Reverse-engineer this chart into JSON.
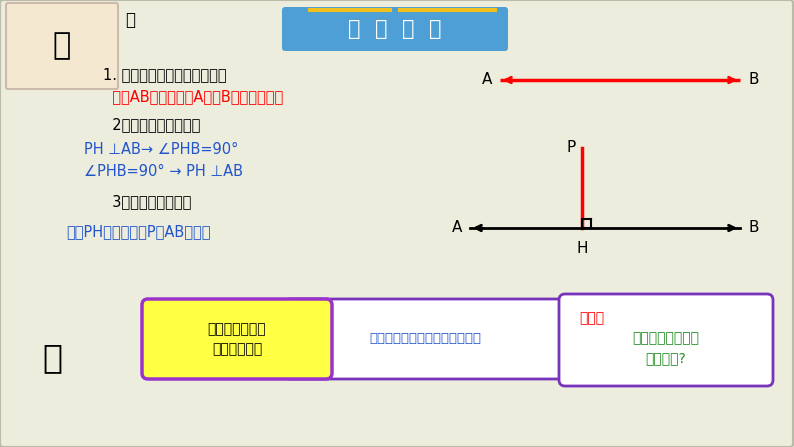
{
  "bg_color": "#ededde",
  "title_text": "温  故  知  新",
  "title_bg": "#4d9fd6",
  "text1": "1. 点与点之间的距离是什么？",
  "text2": "  线段AB的长就是点A与点B之间的距离。",
  "text3": "  2、垂线的概念与性质",
  "text4": "PH ⊥AB→ ∠PHB=90°",
  "text5": "∠PHB=90° → PH ⊥AB",
  "text6": "  3．点与直线的距离",
  "text7": "线段PH的长就是点P到AB的距离",
  "note_text": "注意：距离是指\n线段的长度！",
  "mid_text": "通过距离怎么计算说明了什么？",
  "question_label": "问题：",
  "question_text": "两平行线之间的距\n离是什么?",
  "red_color": "#ff0000",
  "blue_color": "#2255cc",
  "orange_red": "#ff2200",
  "green_color": "#228B22",
  "purple_color": "#6622aa",
  "note_bg": "#ffff44",
  "note_border": "#9933cc",
  "bubble_border": "#7733bb",
  "black": "#000000",
  "white": "#ffffff",
  "line_gray": "#bbbbaa"
}
